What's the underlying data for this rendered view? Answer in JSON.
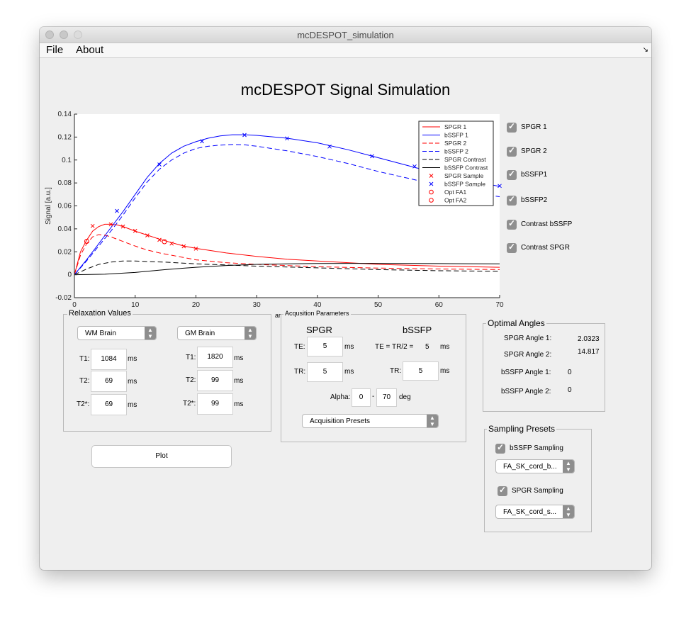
{
  "window": {
    "title": "mcDESPOT_simulation"
  },
  "menu": {
    "file": "File",
    "about": "About"
  },
  "plot_title": "mcDESPOT Signal Simulation",
  "chart_data": {
    "type": "line",
    "title": "",
    "xlabel": "",
    "ylabel": "Signal [a.u.]",
    "xlim": [
      0,
      70
    ],
    "ylim": [
      -0.02,
      0.14
    ],
    "xticks": [
      "0",
      "10",
      "20",
      "30",
      "40",
      "50",
      "60",
      "70"
    ],
    "yticks": [
      "-0.02",
      "0",
      "0.02",
      "0.04",
      "0.06",
      "0.08",
      "0.1",
      "0.12",
      "0.14"
    ],
    "grid": false,
    "legend_position": "top-right",
    "legend": [
      "SPGR 1",
      "bSSFP 1",
      "SPGR 2",
      "bSSFP 2",
      "SPGR Contrast",
      "bSSFP Contrast",
      "SPGR Sample",
      "bSSFP Sample",
      "Opt FA1",
      "Opt FA2"
    ],
    "series": [
      {
        "name": "SPGR 1",
        "color": "#ff0000",
        "dash": "solid",
        "x": [
          0,
          1,
          2,
          3,
          4,
          5,
          6,
          7,
          8,
          10,
          12,
          14,
          16,
          18,
          20,
          25,
          30,
          35,
          40,
          50,
          60,
          70
        ],
        "y": [
          0,
          0.02,
          0.03,
          0.038,
          0.042,
          0.044,
          0.044,
          0.0435,
          0.042,
          0.038,
          0.0345,
          0.031,
          0.028,
          0.025,
          0.023,
          0.019,
          0.016,
          0.0135,
          0.012,
          0.009,
          0.0075,
          0.0065
        ]
      },
      {
        "name": "bSSFP 1",
        "color": "#0000ff",
        "dash": "solid",
        "x": [
          0,
          2,
          4,
          6,
          8,
          10,
          12,
          14,
          16,
          18,
          20,
          22,
          24,
          26,
          28,
          30,
          35,
          40,
          45,
          50,
          55,
          60,
          65,
          70
        ],
        "y": [
          0,
          0.013,
          0.027,
          0.041,
          0.055,
          0.07,
          0.085,
          0.097,
          0.106,
          0.112,
          0.116,
          0.119,
          0.121,
          0.122,
          0.122,
          0.1215,
          0.119,
          0.115,
          0.109,
          0.102,
          0.095,
          0.088,
          0.082,
          0.077
        ]
      },
      {
        "name": "SPGR 2",
        "color": "#ff0000",
        "dash": "dashed",
        "x": [
          0,
          1,
          2,
          3,
          4,
          5,
          6,
          7,
          8,
          10,
          12,
          14,
          16,
          18,
          20,
          25,
          30,
          40,
          50,
          60,
          70
        ],
        "y": [
          0,
          0.017,
          0.027,
          0.033,
          0.035,
          0.0345,
          0.033,
          0.031,
          0.029,
          0.025,
          0.0215,
          0.019,
          0.017,
          0.015,
          0.013,
          0.0105,
          0.009,
          0.007,
          0.0058,
          0.005,
          0.0045
        ]
      },
      {
        "name": "bSSFP 2",
        "color": "#0000ff",
        "dash": "dashed",
        "x": [
          0,
          2,
          4,
          6,
          8,
          10,
          12,
          14,
          16,
          18,
          20,
          22,
          24,
          26,
          28,
          30,
          35,
          40,
          45,
          50,
          55,
          60,
          65,
          70
        ],
        "y": [
          0,
          0.012,
          0.025,
          0.038,
          0.052,
          0.067,
          0.081,
          0.092,
          0.1,
          0.106,
          0.11,
          0.112,
          0.113,
          0.1135,
          0.1133,
          0.112,
          0.108,
          0.103,
          0.097,
          0.09,
          0.084,
          0.078,
          0.072,
          0.068
        ]
      },
      {
        "name": "SPGR Contrast",
        "color": "#000000",
        "dash": "dashed",
        "x": [
          0,
          2,
          4,
          6,
          8,
          10,
          12,
          15,
          20,
          25,
          30,
          40,
          50,
          60,
          70
        ],
        "y": [
          0,
          0.005,
          0.009,
          0.011,
          0.012,
          0.012,
          0.0115,
          0.011,
          0.0095,
          0.0085,
          0.0075,
          0.006,
          0.0045,
          0.0035,
          0.003
        ]
      },
      {
        "name": "bSSFP Contrast",
        "color": "#000000",
        "dash": "solid",
        "x": [
          0,
          5,
          10,
          15,
          20,
          25,
          30,
          35,
          40,
          45,
          50,
          55,
          60,
          65,
          70
        ],
        "y": [
          0,
          0.0005,
          0.002,
          0.0045,
          0.0065,
          0.008,
          0.009,
          0.0095,
          0.0098,
          0.0099,
          0.0099,
          0.0098,
          0.0097,
          0.0096,
          0.0095
        ]
      }
    ],
    "markers": [
      {
        "name": "SPGR Sample",
        "color": "#ff0000",
        "shape": "x",
        "x": [
          3,
          6,
          8,
          10,
          12,
          14,
          16,
          18,
          20
        ],
        "y": [
          0.0425,
          0.0439,
          0.042,
          0.0382,
          0.0343,
          0.0304,
          0.0272,
          0.0248,
          0.0227
        ]
      },
      {
        "name": "bSSFP Sample",
        "color": "#0000ff",
        "shape": "x",
        "x": [
          7,
          14,
          21,
          28,
          35,
          42,
          49,
          56,
          63,
          70
        ],
        "y": [
          0.0556,
          0.0961,
          0.1163,
          0.1218,
          0.1188,
          0.1117,
          0.1033,
          0.0944,
          0.0838,
          0.0774
        ]
      },
      {
        "name": "Opt FA1",
        "color": "#ff0000",
        "shape": "o",
        "x": [
          2.0323
        ],
        "y": [
          0.0291
        ]
      },
      {
        "name": "Opt FA2",
        "color": "#ff0000",
        "shape": "o",
        "x": [
          14.817
        ],
        "y": [
          0.0288
        ]
      }
    ]
  },
  "checkboxes": [
    "SPGR 1",
    "SPGR 2",
    "bSSFP1",
    "bSSFP2",
    "Contrast bSSFP",
    "Contrast SPGR"
  ],
  "relaxation": {
    "title": "Relaxation Values",
    "left_preset": "WM Brain",
    "right_preset": "GM Brain",
    "labels": {
      "t1": "T1:",
      "t2": "T2:",
      "t2s": "T2*:"
    },
    "unit": "ms",
    "wm": {
      "t1": "1084",
      "t2": "69",
      "t2s": "69"
    },
    "gm": {
      "t1": "1820",
      "t2": "99",
      "t2s": "99"
    }
  },
  "acq": {
    "title": "Acqusition Parameters",
    "stray": "ar",
    "spgr_header": "SPGR",
    "bssfp_header": "bSSFP",
    "te_label": "TE:",
    "te": "5",
    "tr_label": "TR:",
    "tr": "5",
    "te_tr2_label": "TE = TR/2 =",
    "te_tr2": "5",
    "bssfp_tr": "5",
    "unit": "ms",
    "alpha_label": "Alpha:",
    "alpha_min": "0",
    "alpha_sep": "-",
    "alpha_max": "70",
    "alpha_unit": "deg",
    "presets": "Acquisition Presets"
  },
  "optimal": {
    "title": "Optimal Angles",
    "labels": [
      "SPGR Angle 1:",
      "SPGR Angle 2:",
      "bSSFP Angle 1:",
      "bSSFP Angle 2:"
    ],
    "values": [
      "2.0323",
      "14.817",
      "0",
      "0"
    ]
  },
  "sampling": {
    "title": "Sampling Presets",
    "bssfp_label": "bSSFP Sampling",
    "bssfp_preset": "FA_SK_cord_b...",
    "spgr_label": "SPGR Sampling",
    "spgr_preset": "FA_SK_cord_s..."
  },
  "plot_button": "Plot"
}
